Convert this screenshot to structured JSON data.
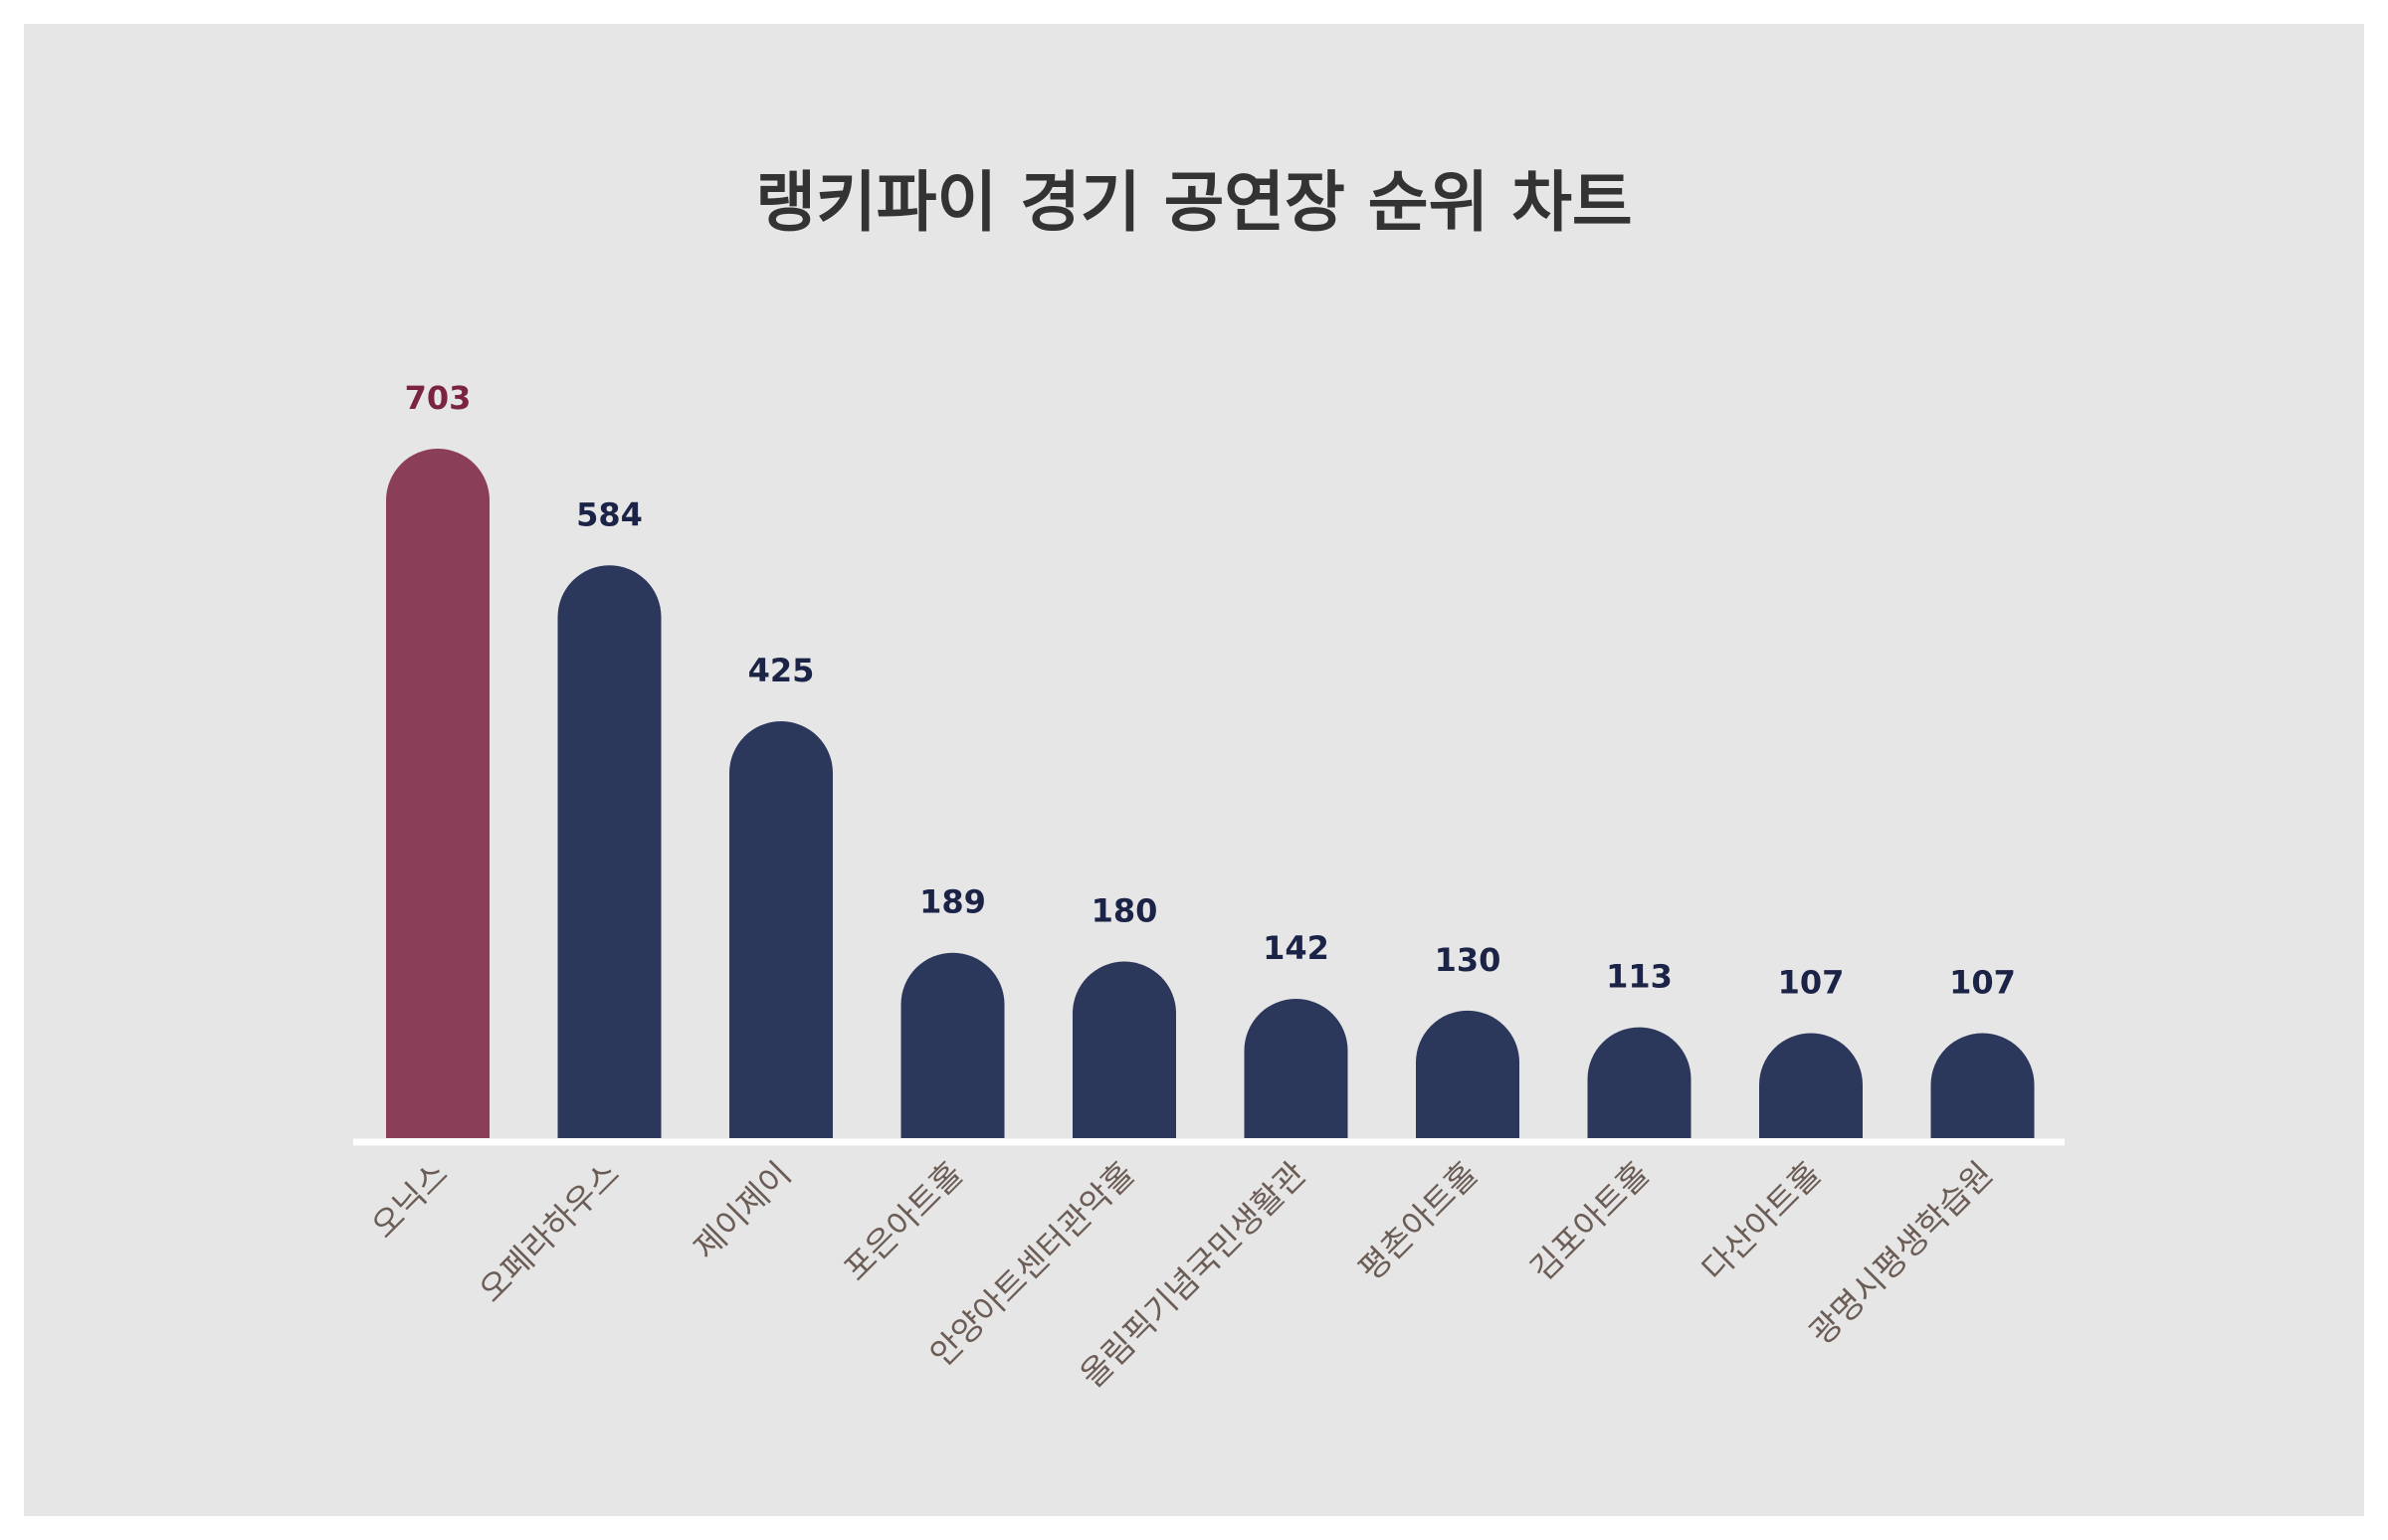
{
  "chart_data": {
    "type": "bar",
    "title": "랭키파이 경기 공연장 순위 차트",
    "xlabel": "",
    "ylabel": "",
    "categories": [
      "오닉스",
      "오페라하우스",
      "제이제이",
      "포은아트홀",
      "안양아트센터관악홀",
      "올림픽기념국민생활관",
      "평촌아트홀",
      "김포아트홀",
      "다산아트홀",
      "광명시평생학습원"
    ],
    "values": [
      703,
      584,
      425,
      189,
      180,
      142,
      130,
      113,
      107,
      107
    ],
    "ylim": [
      0,
      703
    ],
    "grid": false,
    "legend": "none",
    "colors": {
      "highlight": "#8b3e57",
      "bar": "#2c375c",
      "highlight_label": "#7a2440",
      "value_label": "#1b2347",
      "tick_label": "#6b5d55",
      "baseline": "#ffffff"
    }
  }
}
